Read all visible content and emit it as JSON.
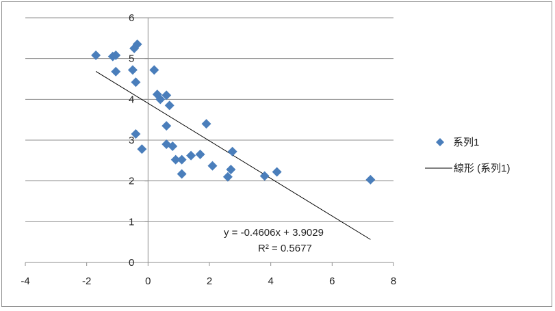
{
  "chart_data": {
    "type": "scatter",
    "title": "",
    "xlabel": "",
    "ylabel": "",
    "xlim": [
      -4,
      8
    ],
    "ylim": [
      0,
      6
    ],
    "x_ticks": [
      "-4",
      "-2",
      "0",
      "2",
      "4",
      "6",
      "8"
    ],
    "y_ticks": [
      "0",
      "1",
      "2",
      "3",
      "4",
      "5",
      "6"
    ],
    "grid": "horizontal",
    "legend_position": "right",
    "series": [
      {
        "name": "系列1",
        "color": "#4a7ebb",
        "marker": "diamond",
        "points": [
          [
            -1.7,
            5.08
          ],
          [
            -1.15,
            5.05
          ],
          [
            -1.05,
            5.08
          ],
          [
            -1.05,
            4.68
          ],
          [
            -0.45,
            5.25
          ],
          [
            -0.35,
            5.35
          ],
          [
            -0.5,
            4.72
          ],
          [
            -0.4,
            4.42
          ],
          [
            0.2,
            4.72
          ],
          [
            0.3,
            4.12
          ],
          [
            0.4,
            4.0
          ],
          [
            0.6,
            4.1
          ],
          [
            0.7,
            3.85
          ],
          [
            0.6,
            3.35
          ],
          [
            -0.4,
            3.15
          ],
          [
            -0.2,
            2.78
          ],
          [
            0.6,
            2.9
          ],
          [
            0.8,
            2.85
          ],
          [
            0.9,
            2.52
          ],
          [
            1.1,
            2.52
          ],
          [
            1.1,
            2.17
          ],
          [
            1.4,
            2.62
          ],
          [
            1.7,
            2.65
          ],
          [
            1.9,
            3.4
          ],
          [
            2.1,
            2.37
          ],
          [
            2.6,
            2.1
          ],
          [
            2.7,
            2.28
          ],
          [
            2.75,
            2.72
          ],
          [
            3.8,
            2.12
          ],
          [
            4.2,
            2.22
          ],
          [
            7.25,
            2.03
          ]
        ]
      }
    ],
    "trendline": {
      "name": "線形 (系列1)",
      "slope": -0.4606,
      "intercept": 3.9029,
      "x_range": [
        -1.7,
        7.25
      ],
      "equation_label": "y = -0.4606x + 3.9029",
      "r2_label": "R² = 0.5677"
    }
  }
}
